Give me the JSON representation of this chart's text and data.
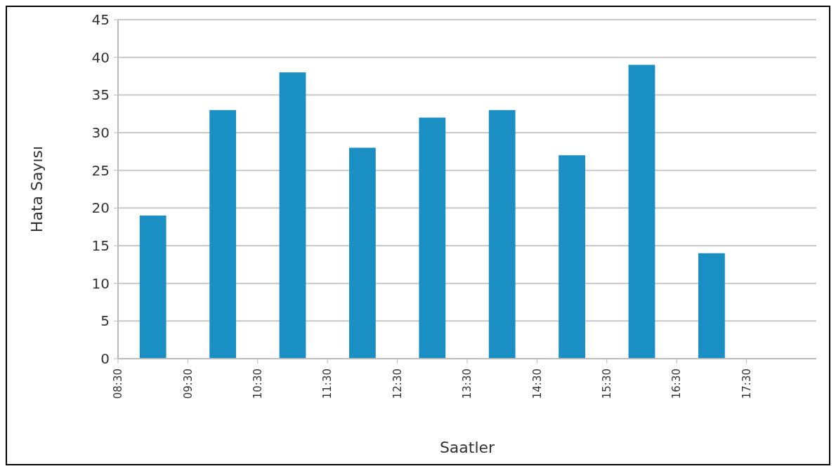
{
  "chart_data": {
    "type": "bar",
    "xlabel": "Saatler",
    "ylabel": "Hata Sayısı",
    "x": [
      9,
      10,
      11,
      12,
      13,
      14,
      15,
      16,
      17
    ],
    "values": [
      19,
      33,
      38,
      28,
      32,
      33,
      27,
      39,
      14
    ],
    "color": "#1a8fc4",
    "xlim": [
      8.5,
      18.5
    ],
    "xticks": [
      {
        "value": 8.5,
        "label": "08:30"
      },
      {
        "value": 9.5,
        "label": "09:30"
      },
      {
        "value": 10.5,
        "label": "10:30"
      },
      {
        "value": 11.5,
        "label": "11:30"
      },
      {
        "value": 12.5,
        "label": "12:30"
      },
      {
        "value": 13.5,
        "label": "13:30"
      },
      {
        "value": 14.5,
        "label": "14:30"
      },
      {
        "value": 15.5,
        "label": "15:30"
      },
      {
        "value": 16.5,
        "label": "16:30"
      },
      {
        "value": 17.5,
        "label": "17:30"
      }
    ],
    "ylim": [
      0,
      45
    ],
    "yticks": [
      0,
      5,
      10,
      15,
      20,
      25,
      30,
      35,
      40,
      45
    ],
    "grid": "y"
  }
}
